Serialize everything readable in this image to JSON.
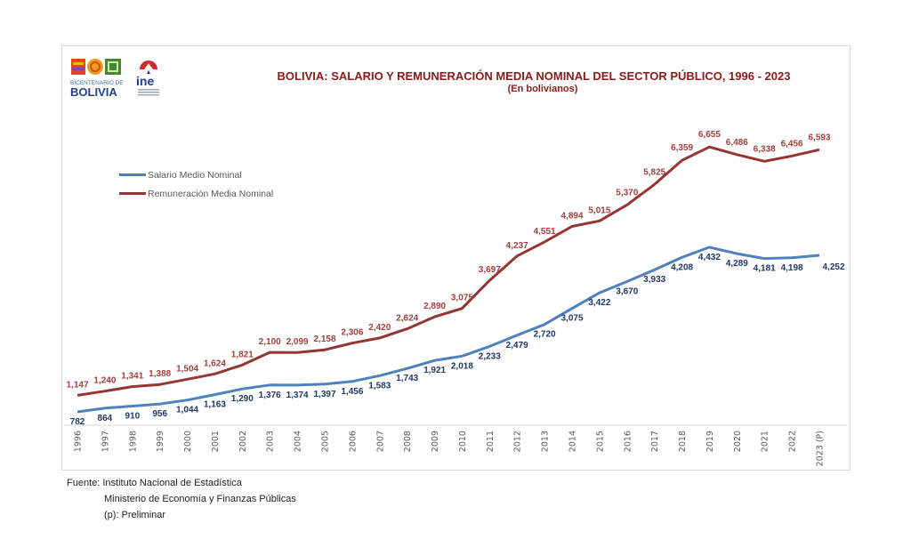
{
  "header": {
    "logo_bicentenario": {
      "line1": "BICENTENARIO DE",
      "line2": "BOLIVIA"
    },
    "logo_ine": {
      "text": "ine"
    }
  },
  "chart_data": {
    "type": "line",
    "title": "BOLIVIA: SALARIO Y REMUNERACIÓN MEDIA NOMINAL DEL SECTOR PÚBLICO, 1996 - 2023",
    "subtitle": "(En bolivianos)",
    "xlabel": "",
    "ylabel": "",
    "grid": false,
    "legend_placement": "top-left",
    "categories": [
      "1996",
      "1997",
      "1998",
      "1999",
      "2000",
      "2001",
      "2002",
      "2003",
      "2004",
      "2005",
      "2006",
      "2007",
      "2008",
      "2009",
      "2010",
      "2011",
      "2012",
      "2013",
      "2014",
      "2015",
      "2016",
      "2017",
      "2018",
      "2019",
      "2020",
      "2021",
      "2022",
      "2023 (P)"
    ],
    "series": [
      {
        "name": "Salario Medio Nominal",
        "color": "#4f81bd",
        "label_color": "#1f3864",
        "values": [
          782,
          864,
          910,
          956,
          1044,
          1163,
          1290,
          1376,
          1374,
          1397,
          1456,
          1583,
          1743,
          1921,
          2018,
          2233,
          2479,
          2720,
          3075,
          3422,
          3670,
          3933,
          4208,
          4432,
          4289,
          4181,
          4198,
          4252
        ],
        "labels": [
          "782",
          "864",
          "910",
          "956",
          "1,044",
          "1,163",
          "1,290",
          "1,376",
          "1,374",
          "1,397",
          "1,456",
          "1,583",
          "1,743",
          "1,921",
          "2,018",
          "2,233",
          "2,479",
          "2,720",
          "3,075",
          "3,422",
          "3,670",
          "3,933",
          "4,208",
          "4,432",
          "4,289",
          "4,181",
          "4,198",
          "4,252"
        ]
      },
      {
        "name": "Remuneración Media Nominal",
        "color": "#963634",
        "label_color": "#a0413e",
        "values": [
          1147,
          1240,
          1341,
          1388,
          1504,
          1624,
          1821,
          2100,
          2099,
          2158,
          2306,
          2420,
          2624,
          2890,
          3075,
          3697,
          4237,
          4551,
          4894,
          5015,
          5370,
          5825,
          6359,
          6655,
          6486,
          6338,
          6456,
          6593
        ],
        "labels": [
          "1,147",
          "1,240",
          "1,341",
          "1,388",
          "1,504",
          "1,624",
          "1,821",
          "2,100",
          "2,099",
          "2,158",
          "2,306",
          "2,420",
          "2,624",
          "2,890",
          "3,075",
          "3,697",
          "4,237",
          "4,551",
          "4,894",
          "5,015",
          "5,370",
          "5,825",
          "6,359",
          "6,655",
          "6,486",
          "6,338",
          "6,456",
          "6,593"
        ]
      }
    ],
    "ylim": [
      500,
      7200
    ]
  },
  "footer": {
    "source_label": "Fuente: Instituto Nacional de Estadística",
    "source_line2": "Ministerio de Economía y Finanzas Públicas",
    "note": "(p): Preliminar"
  }
}
